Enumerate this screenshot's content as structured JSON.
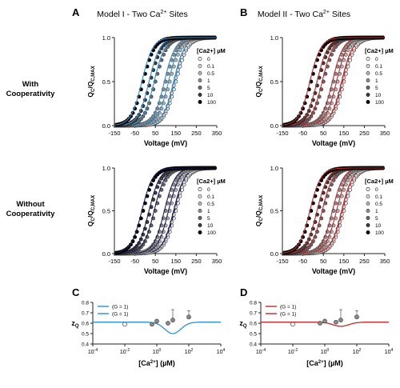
{
  "figure": {
    "panel_letters": [
      "A",
      "B",
      "C",
      "D"
    ],
    "column_titles": [
      "Model I - Two Ca<sup>2+</sup> Sites",
      "Model II - Two Ca<sup>2+</sup> Sites"
    ],
    "row_labels": [
      [
        "With",
        "Cooperativity"
      ],
      [
        "Without",
        "Cooperativity"
      ]
    ],
    "colors": {
      "blue_model": "#2e8fd0",
      "red_model": "#c0282a",
      "dark_model": "#1a1a55",
      "axis": "#222222"
    }
  },
  "chart_data": [
    {
      "id": "A_with",
      "type": "scatter",
      "xlabel": "Voltage (mV)",
      "ylabel": "Q_C/Q_C,MAX",
      "x_ticks": [
        -150,
        -50,
        50,
        150,
        250,
        350
      ],
      "y_ticks": [
        0.0,
        0.5,
        1.0
      ],
      "xlim": [
        -150,
        350
      ],
      "ylim": [
        0,
        1
      ],
      "legend_title": "[Ca2+] µM",
      "legend_position": "right",
      "series": [
        {
          "name": "0",
          "v_half": 150,
          "k": 28
        },
        {
          "name": "0.1",
          "v_half": 145,
          "k": 28
        },
        {
          "name": "0.5",
          "v_half": 120,
          "k": 28
        },
        {
          "name": "1",
          "v_half": 100,
          "k": 28
        },
        {
          "name": "5",
          "v_half": 50,
          "k": 28
        },
        {
          "name": "10",
          "v_half": 25,
          "k": 28
        },
        {
          "name": "100",
          "v_half": -10,
          "k": 28
        }
      ],
      "model_curve_color": "blue_model"
    },
    {
      "id": "B_with",
      "type": "scatter",
      "xlabel": "Voltage (mV)",
      "ylabel": "Q_C/Q_C,MAX",
      "x_ticks": [
        -150,
        -50,
        50,
        150,
        250,
        350
      ],
      "y_ticks": [
        0.0,
        0.5,
        1.0
      ],
      "xlim": [
        -150,
        350
      ],
      "ylim": [
        0,
        1
      ],
      "legend_title": "[Ca2+] µM",
      "legend_position": "right",
      "series": [
        {
          "name": "0",
          "v_half": 150,
          "k": 28
        },
        {
          "name": "0.1",
          "v_half": 145,
          "k": 28
        },
        {
          "name": "0.5",
          "v_half": 120,
          "k": 28
        },
        {
          "name": "1",
          "v_half": 100,
          "k": 28
        },
        {
          "name": "5",
          "v_half": 50,
          "k": 28
        },
        {
          "name": "10",
          "v_half": 25,
          "k": 28
        },
        {
          "name": "100",
          "v_half": -10,
          "k": 28
        }
      ],
      "model_curve_color": "red_model"
    },
    {
      "id": "A_without",
      "type": "scatter",
      "xlabel": "Voltage (mV)",
      "ylabel": "Q_C/Q_C,MAX",
      "x_ticks": [
        -150,
        -50,
        50,
        150,
        250,
        350
      ],
      "y_ticks": [
        0.0,
        0.5,
        1.0
      ],
      "xlim": [
        -150,
        350
      ],
      "ylim": [
        0,
        1
      ],
      "legend_title": "[Ca2+] µM",
      "legend_position": "right",
      "series": [
        {
          "name": "0",
          "v_half": 150,
          "k": 28
        },
        {
          "name": "0.1",
          "v_half": 145,
          "k": 28
        },
        {
          "name": "0.5",
          "v_half": 120,
          "k": 28
        },
        {
          "name": "1",
          "v_half": 100,
          "k": 28
        },
        {
          "name": "5",
          "v_half": 50,
          "k": 28
        },
        {
          "name": "10",
          "v_half": 25,
          "k": 28
        },
        {
          "name": "100",
          "v_half": -10,
          "k": 28
        }
      ],
      "model_curve_color": "dark_model"
    },
    {
      "id": "B_without",
      "type": "scatter",
      "xlabel": "Voltage (mV)",
      "ylabel": "Q_C/Q_C,MAX",
      "x_ticks": [
        -150,
        -50,
        50,
        150,
        250,
        350
      ],
      "y_ticks": [
        0.0,
        0.5,
        1.0
      ],
      "xlim": [
        -150,
        350
      ],
      "ylim": [
        0,
        1
      ],
      "legend_title": "[Ca2+] µM",
      "legend_position": "right",
      "series": [
        {
          "name": "0",
          "v_half": 150,
          "k": 28
        },
        {
          "name": "0.1",
          "v_half": 145,
          "k": 28
        },
        {
          "name": "0.5",
          "v_half": 120,
          "k": 28
        },
        {
          "name": "1",
          "v_half": 100,
          "k": 28
        },
        {
          "name": "5",
          "v_half": 50,
          "k": 28
        },
        {
          "name": "10",
          "v_half": 25,
          "k": 28
        },
        {
          "name": "100",
          "v_half": -10,
          "k": 28
        }
      ],
      "model_curve_color": "red_model"
    },
    {
      "id": "C",
      "type": "scatter",
      "xlabel": "[Ca2+] (µM)",
      "ylabel": "zQ",
      "x_scale": "log",
      "xlim": [
        0.0001,
        10000
      ],
      "x_ticks": [
        "10-4",
        "10-2",
        "100",
        "102",
        "104"
      ],
      "ylim": [
        0.4,
        0.8
      ],
      "y_ticks": [
        0.4,
        0.5,
        0.6,
        0.7,
        0.8
      ],
      "legend": [
        "(G = 1)",
        "(G = 1)"
      ],
      "legend_position": "top-left",
      "points": [
        {
          "x": 0.01,
          "y": 0.59,
          "style": "open"
        },
        {
          "x": 0.5,
          "y": 0.59,
          "style": "gray"
        },
        {
          "x": 1,
          "y": 0.62,
          "style": "gray"
        },
        {
          "x": 5,
          "y": 0.6,
          "style": "gray"
        },
        {
          "x": 10,
          "y": 0.63,
          "style": "gray",
          "err": 0.1
        },
        {
          "x": 100,
          "y": 0.66,
          "style": "gray",
          "err": 0.06
        }
      ],
      "curve": {
        "baseline": 0.61,
        "dip_min": 0.5,
        "dip_at": 10
      },
      "curve_color": "blue_model"
    },
    {
      "id": "D",
      "type": "scatter",
      "xlabel": "[Ca2+] (µM)",
      "ylabel": "zQ",
      "x_scale": "log",
      "xlim": [
        0.0001,
        10000
      ],
      "x_ticks": [
        "10-4",
        "10-2",
        "100",
        "102",
        "104"
      ],
      "ylim": [
        0.4,
        0.8
      ],
      "y_ticks": [
        0.4,
        0.5,
        0.6,
        0.7,
        0.8
      ],
      "legend": [
        "(G = 1)",
        "(G = 1)"
      ],
      "legend_position": "top-left",
      "points": [
        {
          "x": 0.01,
          "y": 0.59,
          "style": "open"
        },
        {
          "x": 0.5,
          "y": 0.6,
          "style": "gray"
        },
        {
          "x": 1,
          "y": 0.62,
          "style": "gray"
        },
        {
          "x": 5,
          "y": 0.61,
          "style": "gray"
        },
        {
          "x": 10,
          "y": 0.63,
          "style": "gray",
          "err": 0.1
        },
        {
          "x": 100,
          "y": 0.66,
          "style": "gray",
          "err": 0.06
        }
      ],
      "curve": {
        "baseline": 0.61,
        "dip_min": 0.57,
        "dip_at": 10
      },
      "curve_color": "red_model"
    }
  ]
}
